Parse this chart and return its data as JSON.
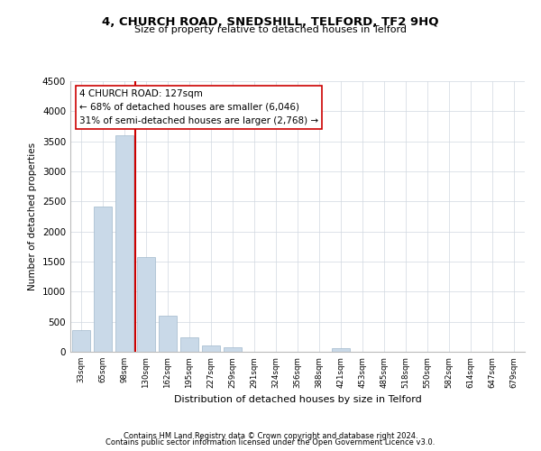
{
  "title": "4, CHURCH ROAD, SNEDSHILL, TELFORD, TF2 9HQ",
  "subtitle": "Size of property relative to detached houses in Telford",
  "xlabel": "Distribution of detached houses by size in Telford",
  "ylabel": "Number of detached properties",
  "bar_labels": [
    "33sqm",
    "65sqm",
    "98sqm",
    "130sqm",
    "162sqm",
    "195sqm",
    "227sqm",
    "259sqm",
    "291sqm",
    "324sqm",
    "356sqm",
    "388sqm",
    "421sqm",
    "453sqm",
    "485sqm",
    "518sqm",
    "550sqm",
    "582sqm",
    "614sqm",
    "647sqm",
    "679sqm"
  ],
  "bar_values": [
    360,
    2420,
    3600,
    1580,
    600,
    240,
    110,
    70,
    0,
    0,
    0,
    0,
    60,
    0,
    0,
    0,
    0,
    0,
    0,
    0,
    0
  ],
  "bar_color": "#c9d9e8",
  "bar_edge_color": "#a0b8cc",
  "vline_color": "#cc0000",
  "annotation_title": "4 CHURCH ROAD: 127sqm",
  "annotation_line1": "← 68% of detached houses are smaller (6,046)",
  "annotation_line2": "31% of semi-detached houses are larger (2,768) →",
  "annotation_box_color": "#ffffff",
  "annotation_box_edge": "#cc0000",
  "ylim": [
    0,
    4500
  ],
  "yticks": [
    0,
    500,
    1000,
    1500,
    2000,
    2500,
    3000,
    3500,
    4000,
    4500
  ],
  "footer1": "Contains HM Land Registry data © Crown copyright and database right 2024.",
  "footer2": "Contains public sector information licensed under the Open Government Licence v3.0.",
  "background_color": "#ffffff",
  "grid_color": "#d0d8e0"
}
